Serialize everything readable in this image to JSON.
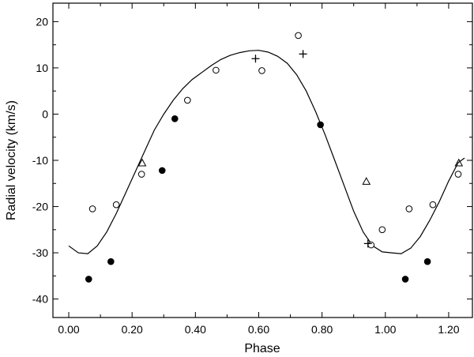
{
  "chart_data": {
    "type": "scatter",
    "xlabel": "Phase",
    "ylabel": "Radial velocity (km/s)",
    "xlim": [
      -0.05,
      1.275
    ],
    "ylim": [
      -44,
      24
    ],
    "x_ticks": [
      0.0,
      0.2,
      0.4,
      0.6,
      0.8,
      1.0,
      1.2
    ],
    "x_tick_labels": [
      "0.00",
      "0.20",
      "0.40",
      "0.60",
      "0.80",
      "1.00",
      "1.20"
    ],
    "y_ticks": [
      20,
      10,
      0,
      -10,
      -20,
      -30,
      -40
    ],
    "y_tick_labels": [
      "20",
      "10",
      "0",
      "-10",
      "-20",
      "-30",
      "-40"
    ],
    "grid": false,
    "colors": {
      "axis": "#000000",
      "curve": "#000000",
      "markers": "#000000"
    },
    "series": [
      {
        "marker": "open-circle",
        "points": [
          {
            "x": 0.075,
            "y": -20.5
          },
          {
            "x": 0.15,
            "y": -19.6
          },
          {
            "x": 0.23,
            "y": -13.0
          },
          {
            "x": 0.375,
            "y": 3.0
          },
          {
            "x": 0.465,
            "y": 9.5
          },
          {
            "x": 0.61,
            "y": 9.4
          },
          {
            "x": 0.725,
            "y": 17.0
          },
          {
            "x": 0.955,
            "y": -28.3
          },
          {
            "x": 0.99,
            "y": -25.0
          },
          {
            "x": 1.075,
            "y": -20.5
          },
          {
            "x": 1.15,
            "y": -19.6
          },
          {
            "x": 1.23,
            "y": -13.0
          }
        ]
      },
      {
        "marker": "filled-circle",
        "points": [
          {
            "x": 0.063,
            "y": -35.7
          },
          {
            "x": 0.133,
            "y": -31.9
          },
          {
            "x": 0.295,
            "y": -12.2
          },
          {
            "x": 0.335,
            "y": -1.0
          },
          {
            "x": 0.795,
            "y": -2.3
          },
          {
            "x": 1.063,
            "y": -35.7
          },
          {
            "x": 1.133,
            "y": -31.9
          }
        ]
      },
      {
        "marker": "open-triangle",
        "points": [
          {
            "x": 0.232,
            "y": -10.6
          },
          {
            "x": 0.94,
            "y": -14.6
          },
          {
            "x": 1.232,
            "y": -10.6
          }
        ]
      },
      {
        "marker": "plus",
        "points": [
          {
            "x": 0.59,
            "y": 12.0
          },
          {
            "x": 0.74,
            "y": 13.0
          },
          {
            "x": 0.945,
            "y": -28.0
          }
        ]
      }
    ],
    "curve": {
      "type": "line",
      "points": [
        {
          "x": 0.0,
          "y": -28.5
        },
        {
          "x": 0.03,
          "y": -30.0
        },
        {
          "x": 0.06,
          "y": -30.2
        },
        {
          "x": 0.09,
          "y": -28.5
        },
        {
          "x": 0.12,
          "y": -25.5
        },
        {
          "x": 0.15,
          "y": -21.5
        },
        {
          "x": 0.18,
          "y": -17.0
        },
        {
          "x": 0.21,
          "y": -12.5
        },
        {
          "x": 0.24,
          "y": -8.0
        },
        {
          "x": 0.27,
          "y": -3.5
        },
        {
          "x": 0.3,
          "y": 0.0
        },
        {
          "x": 0.33,
          "y": 3.0
        },
        {
          "x": 0.36,
          "y": 5.5
        },
        {
          "x": 0.39,
          "y": 7.5
        },
        {
          "x": 0.42,
          "y": 9.0
        },
        {
          "x": 0.45,
          "y": 10.5
        },
        {
          "x": 0.48,
          "y": 11.8
        },
        {
          "x": 0.51,
          "y": 12.7
        },
        {
          "x": 0.54,
          "y": 13.3
        },
        {
          "x": 0.57,
          "y": 13.7
        },
        {
          "x": 0.6,
          "y": 13.8
        },
        {
          "x": 0.63,
          "y": 13.4
        },
        {
          "x": 0.66,
          "y": 12.5
        },
        {
          "x": 0.69,
          "y": 11.0
        },
        {
          "x": 0.72,
          "y": 8.5
        },
        {
          "x": 0.75,
          "y": 5.0
        },
        {
          "x": 0.78,
          "y": 0.5
        },
        {
          "x": 0.81,
          "y": -4.5
        },
        {
          "x": 0.84,
          "y": -10.0
        },
        {
          "x": 0.87,
          "y": -15.5
        },
        {
          "x": 0.9,
          "y": -21.0
        },
        {
          "x": 0.93,
          "y": -25.5
        },
        {
          "x": 0.96,
          "y": -28.5
        },
        {
          "x": 0.99,
          "y": -29.8
        },
        {
          "x": 1.02,
          "y": -30.0
        },
        {
          "x": 1.05,
          "y": -30.2
        },
        {
          "x": 1.08,
          "y": -29.0
        },
        {
          "x": 1.11,
          "y": -26.5
        },
        {
          "x": 1.14,
          "y": -23.0
        },
        {
          "x": 1.17,
          "y": -19.0
        },
        {
          "x": 1.2,
          "y": -14.5
        },
        {
          "x": 1.23,
          "y": -10.5
        },
        {
          "x": 1.25,
          "y": -9.5
        }
      ]
    }
  }
}
